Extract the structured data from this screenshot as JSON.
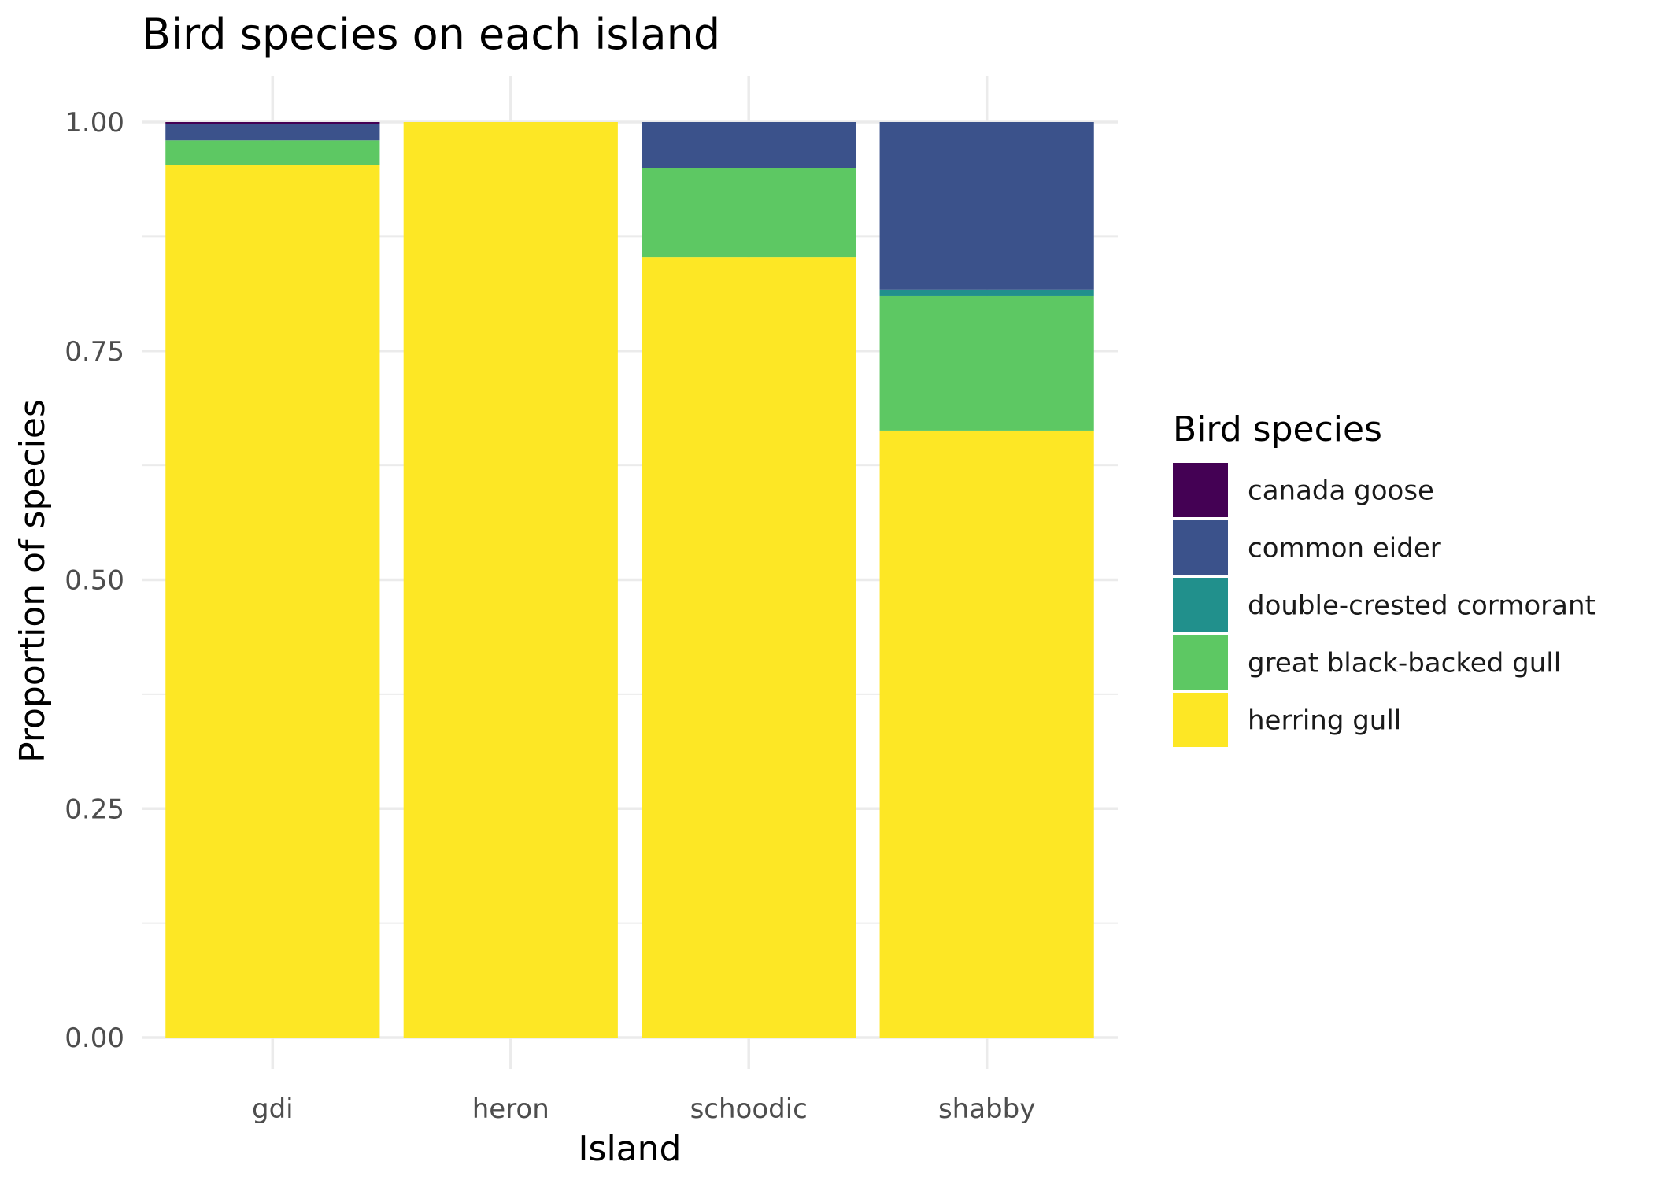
{
  "chart_data": {
    "type": "bar",
    "stacked": true,
    "title": "Bird species on each island",
    "xlabel": "Island",
    "ylabel": "Proportion of species",
    "ylim": [
      0,
      1
    ],
    "yticks": [
      "0.00",
      "0.25",
      "0.50",
      "0.75",
      "1.00"
    ],
    "ytick_values": [
      0,
      0.25,
      0.5,
      0.75,
      1.0
    ],
    "grid": true,
    "legend_title": "Bird species",
    "legend_position": "right",
    "categories": [
      "gdi",
      "heron",
      "schoodic",
      "shabby"
    ],
    "series": [
      {
        "name": "canada goose",
        "color": "#440154",
        "values": [
          0.002,
          0.0,
          0.0,
          0.0
        ]
      },
      {
        "name": "common eider",
        "color": "#3B528B",
        "values": [
          0.018,
          0.0,
          0.05,
          0.183
        ]
      },
      {
        "name": "double-crested cormorant",
        "color": "#21908C",
        "values": [
          0.0,
          0.0,
          0.0,
          0.007
        ]
      },
      {
        "name": "great black-backed gull",
        "color": "#5DC863",
        "values": [
          0.027,
          0.0,
          0.098,
          0.147
        ]
      },
      {
        "name": "herring gull",
        "color": "#FDE725",
        "values": [
          0.953,
          1.0,
          0.852,
          0.663
        ]
      }
    ]
  }
}
